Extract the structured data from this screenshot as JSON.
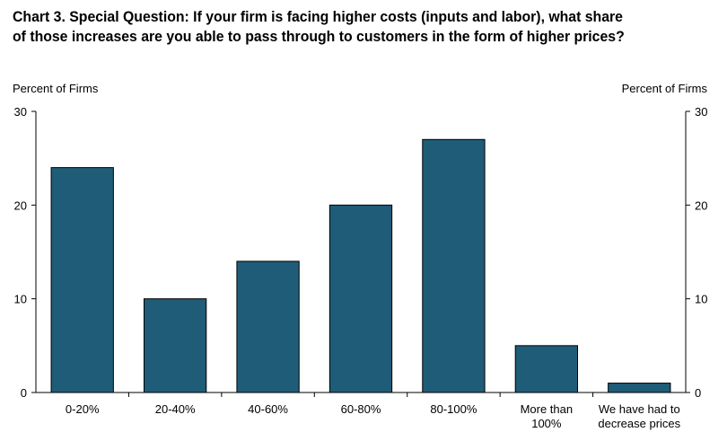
{
  "chart_data": {
    "type": "bar",
    "title": "Chart 3. Special Question: If your firm is facing higher costs (inputs and labor), what share of those increases are you able to pass through to customers in the form of higher prices?",
    "ylabel_left": "Percent of Firms",
    "ylabel_right": "Percent of Firms",
    "xlabel": "",
    "categories": [
      [
        "0-20%"
      ],
      [
        "20-40%"
      ],
      [
        "40-60%"
      ],
      [
        "60-80%"
      ],
      [
        "80-100%"
      ],
      [
        "More than",
        "100%"
      ],
      [
        "We have had to",
        "decrease prices"
      ]
    ],
    "values": [
      24,
      10,
      14,
      20,
      27,
      5,
      1
    ],
    "ylim": [
      0,
      30
    ],
    "yticks": [
      0,
      10,
      20,
      30
    ],
    "bar_color": "#1f5c78",
    "grid": false,
    "legend": "none"
  }
}
